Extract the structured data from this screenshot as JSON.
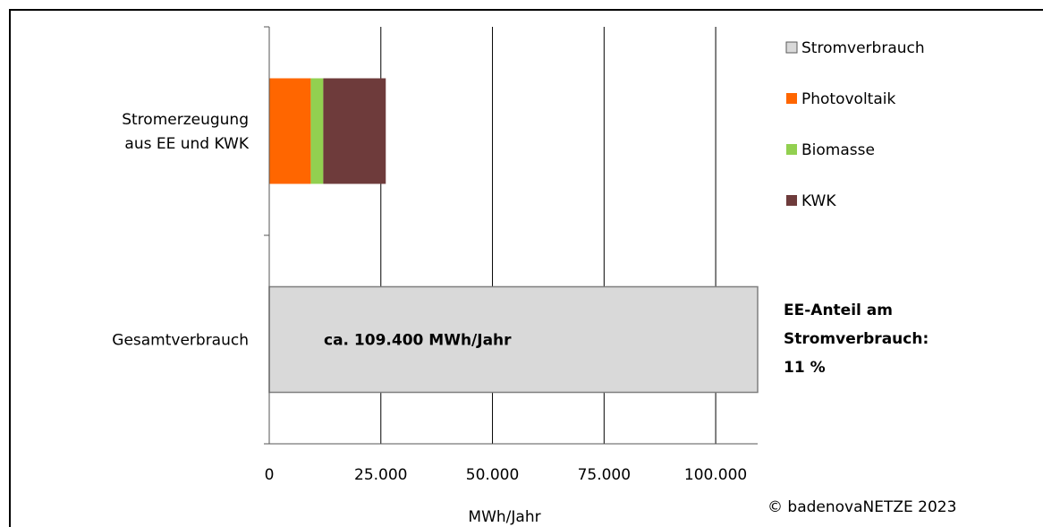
{
  "chart_data": {
    "type": "bar",
    "orientation": "horizontal",
    "stacked": true,
    "categories": [
      "Stromerzeugung aus EE und KWK",
      "Gesamtverbrauch"
    ],
    "category_label_lines": [
      [
        "Stromerzeugung",
        "aus EE und KWK"
      ],
      [
        "Gesamtverbrauch"
      ]
    ],
    "series": [
      {
        "name": "Stromverbrauch",
        "values": [
          0,
          109400
        ],
        "color": "#d9d9d9"
      },
      {
        "name": "Photovoltaik",
        "values": [
          9300,
          0
        ],
        "color": "#ff6600"
      },
      {
        "name": "Biomasse",
        "values": [
          2800,
          0
        ],
        "color": "#92d050"
      },
      {
        "name": "KWK",
        "values": [
          14000,
          0
        ],
        "color": "#6e3b3b"
      }
    ],
    "xlabel": "MWh/Jahr",
    "ylabel": "",
    "xlim": [
      0,
      109400
    ],
    "x_ticks": [
      0,
      25000,
      50000,
      75000,
      100000
    ],
    "x_tick_labels": [
      "0",
      "25.000",
      "50.000",
      "75.000",
      "100.000"
    ],
    "grid": "vertical",
    "legend": "right",
    "bar_annotation": "ca. 109.400 MWh/Jahr",
    "side_note": [
      "EE-Anteil am",
      "Stromverbrauch:",
      "11 %"
    ],
    "credit": "© badenovaNETZE 2023"
  }
}
